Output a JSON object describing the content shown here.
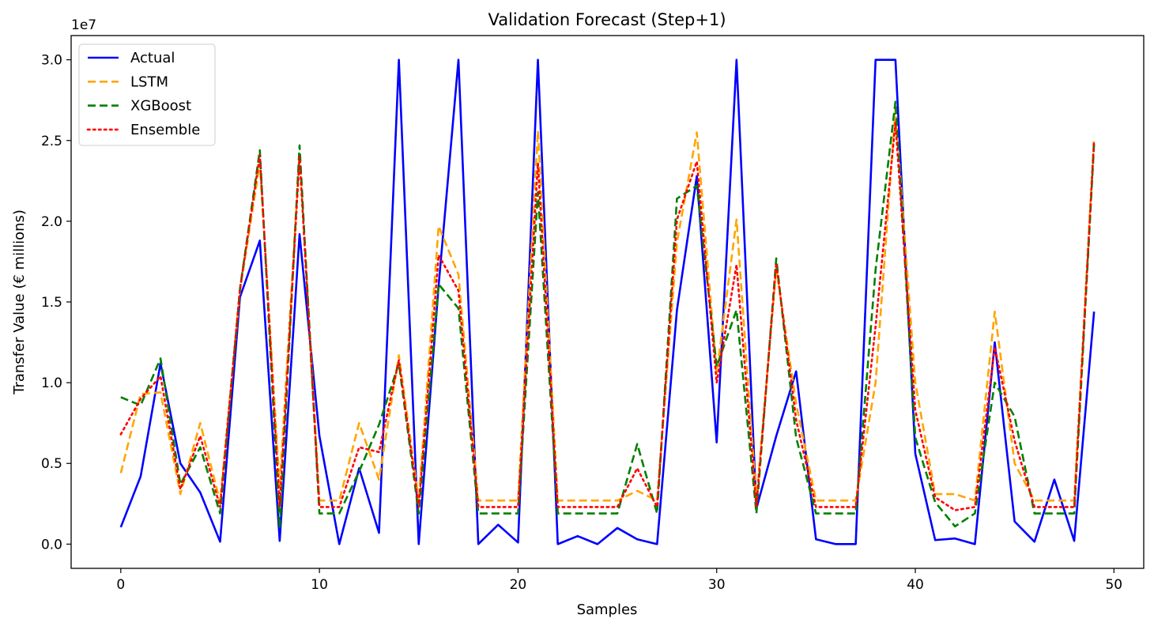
{
  "chart_data": {
    "type": "line",
    "title": "Validation Forecast (Step+1)",
    "xlabel": "Samples",
    "ylabel": "Transfer Value (€ millions)",
    "y_offset_label": "1e7",
    "xlim": [
      -2.5,
      51.5
    ],
    "ylim": [
      -1500000,
      31500000
    ],
    "x_ticks": [
      0,
      10,
      20,
      30,
      40,
      50
    ],
    "x_tick_labels": [
      "0",
      "10",
      "20",
      "30",
      "40",
      "50"
    ],
    "y_ticks": [
      0,
      5000000,
      10000000,
      15000000,
      20000000,
      25000000,
      30000000
    ],
    "y_tick_labels": [
      "0.0",
      "0.5",
      "1.0",
      "1.5",
      "2.0",
      "2.5",
      "3.0"
    ],
    "grid": false,
    "legend_position": "top-left",
    "x": [
      0,
      1,
      2,
      3,
      4,
      5,
      6,
      7,
      8,
      9,
      10,
      11,
      12,
      13,
      14,
      15,
      16,
      17,
      18,
      19,
      20,
      21,
      22,
      23,
      24,
      25,
      26,
      27,
      28,
      29,
      30,
      31,
      32,
      33,
      34,
      35,
      36,
      37,
      38,
      39,
      40,
      41,
      42,
      43,
      44,
      45,
      46,
      47,
      48,
      49
    ],
    "series": [
      {
        "name": "Actual",
        "color": "#0000ff",
        "style": "solid",
        "values": [
          1050000,
          4200000,
          11200000,
          5000000,
          3200000,
          150000,
          15300000,
          18800000,
          200000,
          19200000,
          6700000,
          0,
          4700000,
          700000,
          30000000,
          0,
          16000000,
          30000000,
          0,
          1200000,
          100000,
          30000000,
          0,
          500000,
          0,
          1000000,
          300000,
          0,
          14500000,
          22800000,
          6300000,
          30000000,
          2200000,
          6700000,
          10700000,
          300000,
          0,
          0,
          30000000,
          30000000,
          5600000,
          250000,
          350000,
          0,
          12500000,
          1400000,
          150000,
          4000000,
          200000,
          14400000
        ]
      },
      {
        "name": "LSTM",
        "color": "#ffa500",
        "style": "dashed",
        "values": [
          4400000,
          9300000,
          9400000,
          3100000,
          7500000,
          2600000,
          15700000,
          23600000,
          3500000,
          24200000,
          2700000,
          2700000,
          7500000,
          4000000,
          11700000,
          2700000,
          19700000,
          16700000,
          2700000,
          2700000,
          2700000,
          25600000,
          2700000,
          2700000,
          2700000,
          2700000,
          3300000,
          2700000,
          18700000,
          25500000,
          10600000,
          20100000,
          2700000,
          17100000,
          8700000,
          2700000,
          2700000,
          2700000,
          10000000,
          26900000,
          10000000,
          3100000,
          3100000,
          2700000,
          14400000,
          5000000,
          2700000,
          2700000,
          2700000,
          25200000
        ]
      },
      {
        "name": "XGBoost",
        "color": "#008000",
        "style": "dashed",
        "values": [
          9100000,
          8600000,
          11500000,
          3700000,
          6000000,
          1900000,
          15800000,
          24400000,
          1000000,
          24700000,
          1900000,
          1900000,
          4500000,
          7400000,
          11200000,
          1900000,
          16100000,
          14600000,
          1900000,
          1900000,
          1900000,
          21800000,
          1900000,
          1900000,
          1900000,
          1900000,
          6200000,
          1900000,
          21400000,
          22200000,
          11000000,
          14500000,
          1900000,
          17700000,
          6600000,
          1900000,
          1900000,
          1900000,
          17000000,
          27400000,
          6600000,
          2600000,
          1100000,
          1900000,
          10000000,
          7900000,
          1900000,
          1900000,
          1900000,
          24800000
        ]
      },
      {
        "name": "Ensemble",
        "color": "#ff0000",
        "style": "dotted",
        "values": [
          6800000,
          9000000,
          10400000,
          3400000,
          6700000,
          2300000,
          15800000,
          24100000,
          2300000,
          24000000,
          2300000,
          2300000,
          6000000,
          5700000,
          11400000,
          2300000,
          17900000,
          15700000,
          2300000,
          2300000,
          2300000,
          23600000,
          2300000,
          2300000,
          2300000,
          2300000,
          4700000,
          2300000,
          20100000,
          23700000,
          10000000,
          17300000,
          2300000,
          17400000,
          7700000,
          2300000,
          2300000,
          2300000,
          13500000,
          26100000,
          8300000,
          2900000,
          2100000,
          2300000,
          12200000,
          6400000,
          2300000,
          2300000,
          2300000,
          25000000
        ]
      }
    ]
  }
}
